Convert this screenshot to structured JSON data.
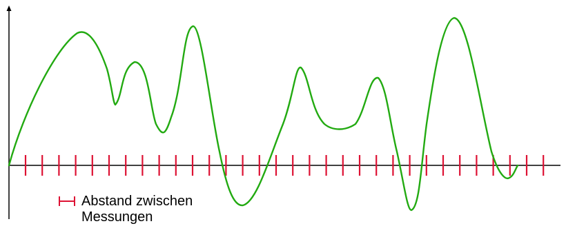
{
  "legend": {
    "label": "Abstand zwischen\nMessungen"
  },
  "colors": {
    "signal": "#22aa11",
    "sample_marks": "#dd1133",
    "axes": "#000000"
  },
  "sampling": {
    "mark_count": 32
  },
  "signal": {
    "shape": "continuous-wave"
  }
}
